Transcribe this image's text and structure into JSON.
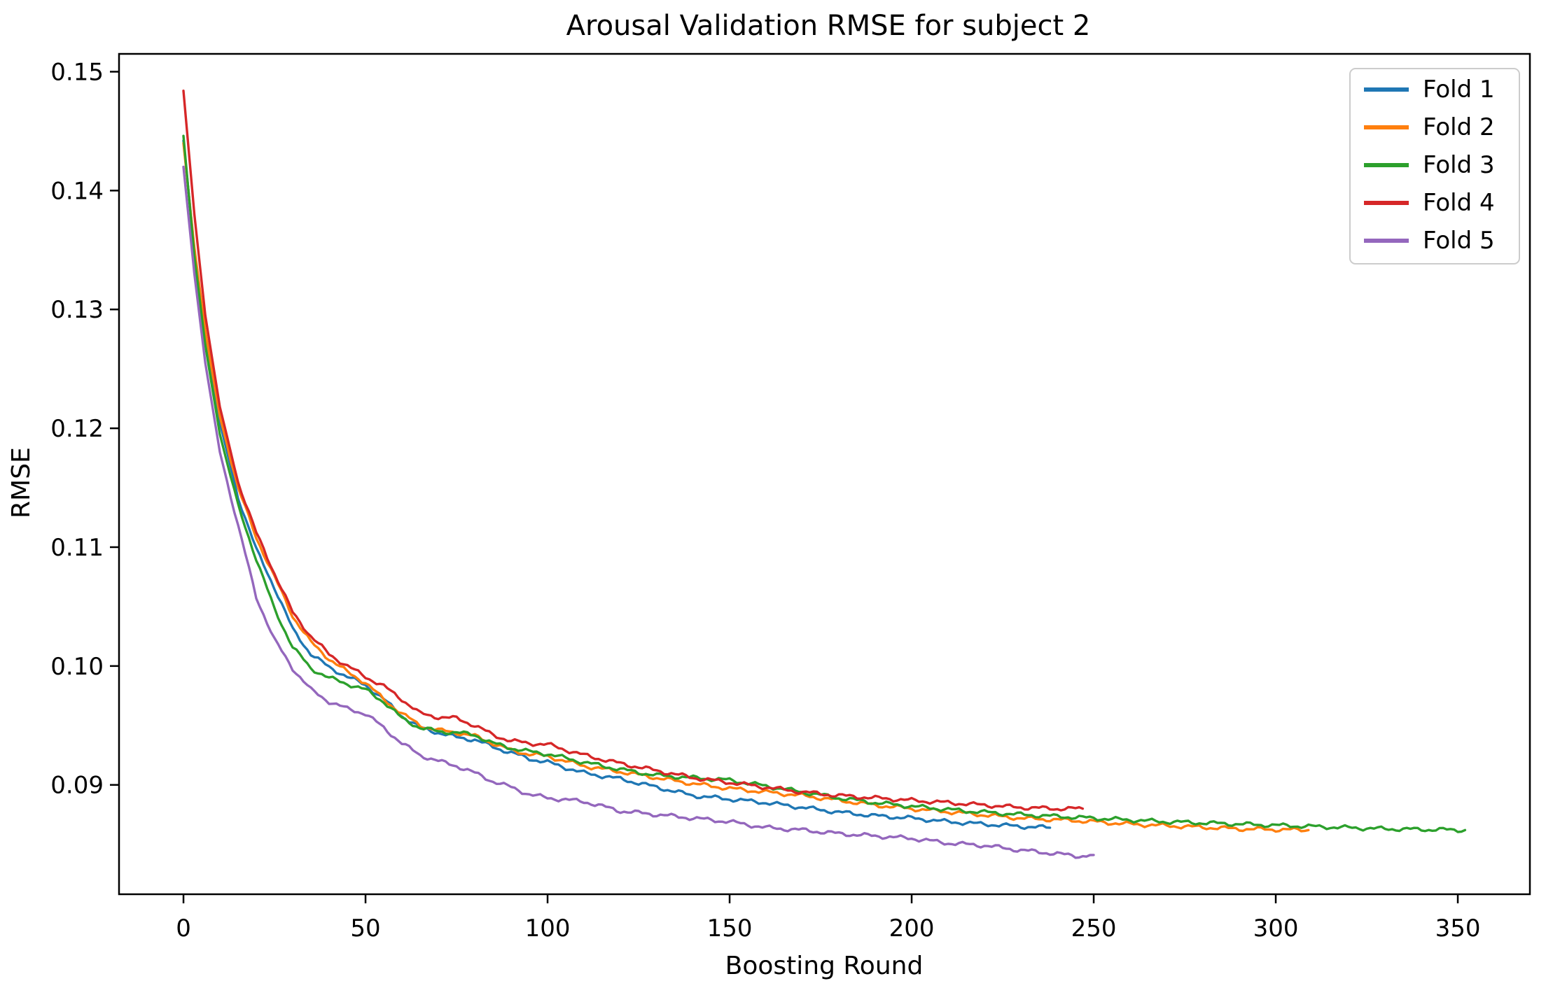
{
  "chart_data": {
    "type": "line",
    "title": "Arousal Validation RMSE for subject 2",
    "xlabel": "Boosting Round",
    "ylabel": "RMSE",
    "xlim": [
      -17.7,
      369.8
    ],
    "ylim": [
      0.0808,
      0.1515
    ],
    "grid": false,
    "legend_position": "upper right",
    "xticks": [
      0,
      50,
      100,
      150,
      200,
      250,
      300,
      350
    ],
    "xtick_labels": [
      "0",
      "50",
      "100",
      "150",
      "200",
      "250",
      "300",
      "350"
    ],
    "yticks": [
      0.09,
      0.1,
      0.11,
      0.12,
      0.13,
      0.14,
      0.15
    ],
    "ytick_labels": [
      "0.09",
      "0.10",
      "0.11",
      "0.12",
      "0.13",
      "0.14",
      "0.15"
    ],
    "series": [
      {
        "name": "Fold 1",
        "color": "#1f77b4",
        "points": [
          [
            0,
            0.1442
          ],
          [
            3,
            0.135
          ],
          [
            6,
            0.1278
          ],
          [
            10,
            0.1205
          ],
          [
            15,
            0.1142
          ],
          [
            20,
            0.1098
          ],
          [
            25,
            0.1066
          ],
          [
            30,
            0.1031
          ],
          [
            35,
            0.101
          ],
          [
            40,
            0.0999
          ],
          [
            45,
            0.0991
          ],
          [
            50,
            0.0984
          ],
          [
            55,
            0.0972
          ],
          [
            60,
            0.0958
          ],
          [
            65,
            0.0948
          ],
          [
            70,
            0.0944
          ],
          [
            75,
            0.094
          ],
          [
            80,
            0.0938
          ],
          [
            85,
            0.0932
          ],
          [
            90,
            0.0927
          ],
          [
            95,
            0.0922
          ],
          [
            100,
            0.0919
          ],
          [
            110,
            0.091
          ],
          [
            120,
            0.0905
          ],
          [
            130,
            0.0898
          ],
          [
            140,
            0.0891
          ],
          [
            150,
            0.0888
          ],
          [
            160,
            0.0885
          ],
          [
            170,
            0.0881
          ],
          [
            180,
            0.0877
          ],
          [
            190,
            0.0874
          ],
          [
            200,
            0.0872
          ],
          [
            210,
            0.0869
          ],
          [
            220,
            0.0867
          ],
          [
            230,
            0.0865
          ],
          [
            238,
            0.0864
          ]
        ]
      },
      {
        "name": "Fold 2",
        "color": "#ff7f0e",
        "points": [
          [
            0,
            0.144
          ],
          [
            3,
            0.1352
          ],
          [
            6,
            0.1282
          ],
          [
            10,
            0.121
          ],
          [
            15,
            0.115
          ],
          [
            20,
            0.1108
          ],
          [
            25,
            0.1075
          ],
          [
            30,
            0.1042
          ],
          [
            35,
            0.102
          ],
          [
            40,
            0.1006
          ],
          [
            45,
            0.0995
          ],
          [
            50,
            0.0986
          ],
          [
            55,
            0.0972
          ],
          [
            60,
            0.096
          ],
          [
            65,
            0.095
          ],
          [
            70,
            0.0946
          ],
          [
            75,
            0.0944
          ],
          [
            80,
            0.0941
          ],
          [
            85,
            0.0935
          ],
          [
            90,
            0.0929
          ],
          [
            95,
            0.0926
          ],
          [
            100,
            0.0924
          ],
          [
            110,
            0.0916
          ],
          [
            120,
            0.0911
          ],
          [
            130,
            0.0906
          ],
          [
            140,
            0.0901
          ],
          [
            150,
            0.0897
          ],
          [
            160,
            0.0894
          ],
          [
            170,
            0.0891
          ],
          [
            180,
            0.0887
          ],
          [
            190,
            0.0883
          ],
          [
            200,
            0.088
          ],
          [
            215,
            0.0876
          ],
          [
            230,
            0.0872
          ],
          [
            245,
            0.087
          ],
          [
            260,
            0.0867
          ],
          [
            275,
            0.0865
          ],
          [
            290,
            0.0863
          ],
          [
            309,
            0.0862
          ]
        ]
      },
      {
        "name": "Fold 3",
        "color": "#2ca02c",
        "points": [
          [
            0,
            0.1446
          ],
          [
            3,
            0.1345
          ],
          [
            6,
            0.127
          ],
          [
            10,
            0.1195
          ],
          [
            15,
            0.1135
          ],
          [
            20,
            0.109
          ],
          [
            25,
            0.1048
          ],
          [
            30,
            0.1016
          ],
          [
            35,
            0.0998
          ],
          [
            40,
            0.099
          ],
          [
            45,
            0.0985
          ],
          [
            50,
            0.098
          ],
          [
            55,
            0.097
          ],
          [
            60,
            0.0956
          ],
          [
            65,
            0.0948
          ],
          [
            70,
            0.0945
          ],
          [
            75,
            0.0944
          ],
          [
            80,
            0.0942
          ],
          [
            85,
            0.0935
          ],
          [
            90,
            0.0931
          ],
          [
            95,
            0.0928
          ],
          [
            100,
            0.0926
          ],
          [
            110,
            0.0919
          ],
          [
            120,
            0.0913
          ],
          [
            130,
            0.0908
          ],
          [
            140,
            0.0906
          ],
          [
            150,
            0.0904
          ],
          [
            160,
            0.0899
          ],
          [
            170,
            0.0894
          ],
          [
            180,
            0.0889
          ],
          [
            190,
            0.0885
          ],
          [
            200,
            0.0882
          ],
          [
            215,
            0.0878
          ],
          [
            230,
            0.0875
          ],
          [
            250,
            0.0872
          ],
          [
            270,
            0.0869
          ],
          [
            290,
            0.0867
          ],
          [
            310,
            0.0865
          ],
          [
            330,
            0.0863
          ],
          [
            352,
            0.0862
          ]
        ]
      },
      {
        "name": "Fold 4",
        "color": "#d62728",
        "points": [
          [
            0,
            0.1484
          ],
          [
            3,
            0.138
          ],
          [
            6,
            0.1295
          ],
          [
            10,
            0.1218
          ],
          [
            15,
            0.1155
          ],
          [
            20,
            0.1112
          ],
          [
            25,
            0.1078
          ],
          [
            30,
            0.1045
          ],
          [
            35,
            0.1025
          ],
          [
            40,
            0.101
          ],
          [
            45,
            0.1
          ],
          [
            50,
            0.0991
          ],
          [
            55,
            0.0983
          ],
          [
            60,
            0.0972
          ],
          [
            65,
            0.096
          ],
          [
            70,
            0.0957
          ],
          [
            75,
            0.0956
          ],
          [
            80,
            0.095
          ],
          [
            85,
            0.0942
          ],
          [
            90,
            0.0937
          ],
          [
            95,
            0.0935
          ],
          [
            100,
            0.0934
          ],
          [
            110,
            0.0925
          ],
          [
            120,
            0.0918
          ],
          [
            130,
            0.0912
          ],
          [
            140,
            0.0906
          ],
          [
            150,
            0.0902
          ],
          [
            160,
            0.0898
          ],
          [
            170,
            0.0894
          ],
          [
            180,
            0.0891
          ],
          [
            190,
            0.0889
          ],
          [
            200,
            0.0887
          ],
          [
            210,
            0.0885
          ],
          [
            220,
            0.0883
          ],
          [
            230,
            0.0881
          ],
          [
            240,
            0.088
          ],
          [
            247,
            0.088
          ]
        ]
      },
      {
        "name": "Fold 5",
        "color": "#9467bd",
        "points": [
          [
            0,
            0.142
          ],
          [
            3,
            0.133
          ],
          [
            6,
            0.1255
          ],
          [
            10,
            0.118
          ],
          [
            15,
            0.1118
          ],
          [
            20,
            0.1058
          ],
          [
            25,
            0.1022
          ],
          [
            30,
            0.0998
          ],
          [
            35,
            0.098
          ],
          [
            40,
            0.097
          ],
          [
            45,
            0.0964
          ],
          [
            50,
            0.096
          ],
          [
            55,
            0.0948
          ],
          [
            60,
            0.0935
          ],
          [
            65,
            0.0925
          ],
          [
            70,
            0.092
          ],
          [
            75,
            0.0916
          ],
          [
            80,
            0.091
          ],
          [
            85,
            0.0903
          ],
          [
            90,
            0.0898
          ],
          [
            95,
            0.0892
          ],
          [
            100,
            0.0889
          ],
          [
            110,
            0.0886
          ],
          [
            120,
            0.0878
          ],
          [
            130,
            0.0875
          ],
          [
            140,
            0.0872
          ],
          [
            150,
            0.0869
          ],
          [
            160,
            0.0864
          ],
          [
            170,
            0.0862
          ],
          [
            180,
            0.0859
          ],
          [
            190,
            0.0857
          ],
          [
            200,
            0.0855
          ],
          [
            210,
            0.0851
          ],
          [
            220,
            0.0849
          ],
          [
            230,
            0.0845
          ],
          [
            240,
            0.0842
          ],
          [
            246,
            0.084
          ],
          [
            250,
            0.0841
          ]
        ]
      }
    ]
  },
  "colors": {
    "axes": "#000000",
    "legend_border": "#cccccc",
    "background": "#ffffff"
  }
}
